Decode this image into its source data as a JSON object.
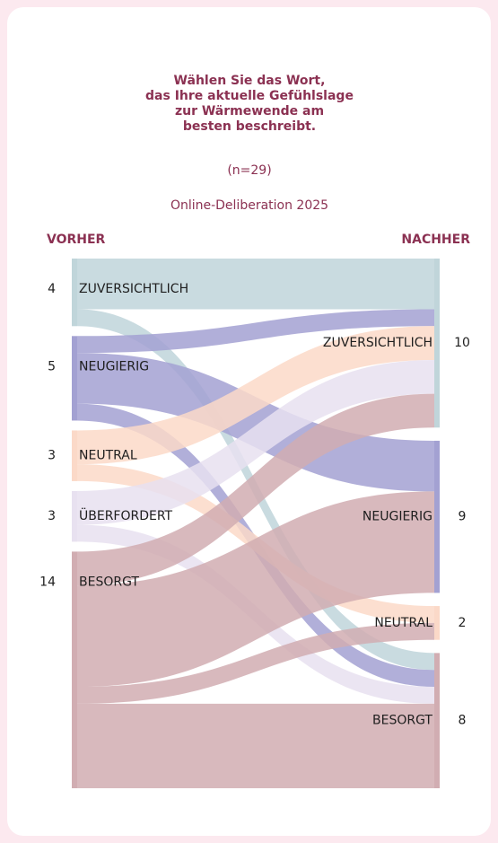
{
  "chart_data": {
    "type": "sankey",
    "title_lines": [
      "Wählen Sie das Wort,",
      "das Ihre aktuelle Gefühlslage",
      "zur Wärmewende am",
      "besten beschreibt."
    ],
    "subtitle": "(n=29)",
    "caption": "Online-Deliberation 2025",
    "left_label": "VORHER",
    "right_label": "NACHHER",
    "left_nodes": [
      {
        "name": "ZUVERSICHTLICH",
        "value": 4,
        "color": "#c0d5da"
      },
      {
        "name": "NEUGIERIG",
        "value": 5,
        "color": "#a3a1d2"
      },
      {
        "name": "NEUTRAL",
        "value": 3,
        "color": "#fbd9c8"
      },
      {
        "name": "ÜBERFORDERT",
        "value": 3,
        "color": "#e8e1f0"
      },
      {
        "name": "BESORGT",
        "value": 14,
        "color": "#d1adb2"
      }
    ],
    "right_nodes": [
      {
        "name": "ZUVERSICHTLICH",
        "value": 10,
        "color": "#c0d5da"
      },
      {
        "name": "NEUGIERIG",
        "value": 9,
        "color": "#a3a1d2"
      },
      {
        "name": "NEUTRAL",
        "value": 2,
        "color": "#fbd9c8"
      },
      {
        "name": "BESORGT",
        "value": 8,
        "color": "#d1adb2"
      }
    ],
    "links": [
      {
        "source": 0,
        "target": 0,
        "value": 3
      },
      {
        "source": 0,
        "target": 3,
        "value": 1
      },
      {
        "source": 1,
        "target": 0,
        "value": 1
      },
      {
        "source": 1,
        "target": 1,
        "value": 3
      },
      {
        "source": 1,
        "target": 3,
        "value": 1
      },
      {
        "source": 2,
        "target": 0,
        "value": 2
      },
      {
        "source": 2,
        "target": 2,
        "value": 1
      },
      {
        "source": 3,
        "target": 0,
        "value": 2
      },
      {
        "source": 3,
        "target": 3,
        "value": 1
      },
      {
        "source": 4,
        "target": 0,
        "value": 2
      },
      {
        "source": 4,
        "target": 1,
        "value": 6
      },
      {
        "source": 4,
        "target": 2,
        "value": 1
      },
      {
        "source": 4,
        "target": 3,
        "value": 5
      }
    ]
  }
}
